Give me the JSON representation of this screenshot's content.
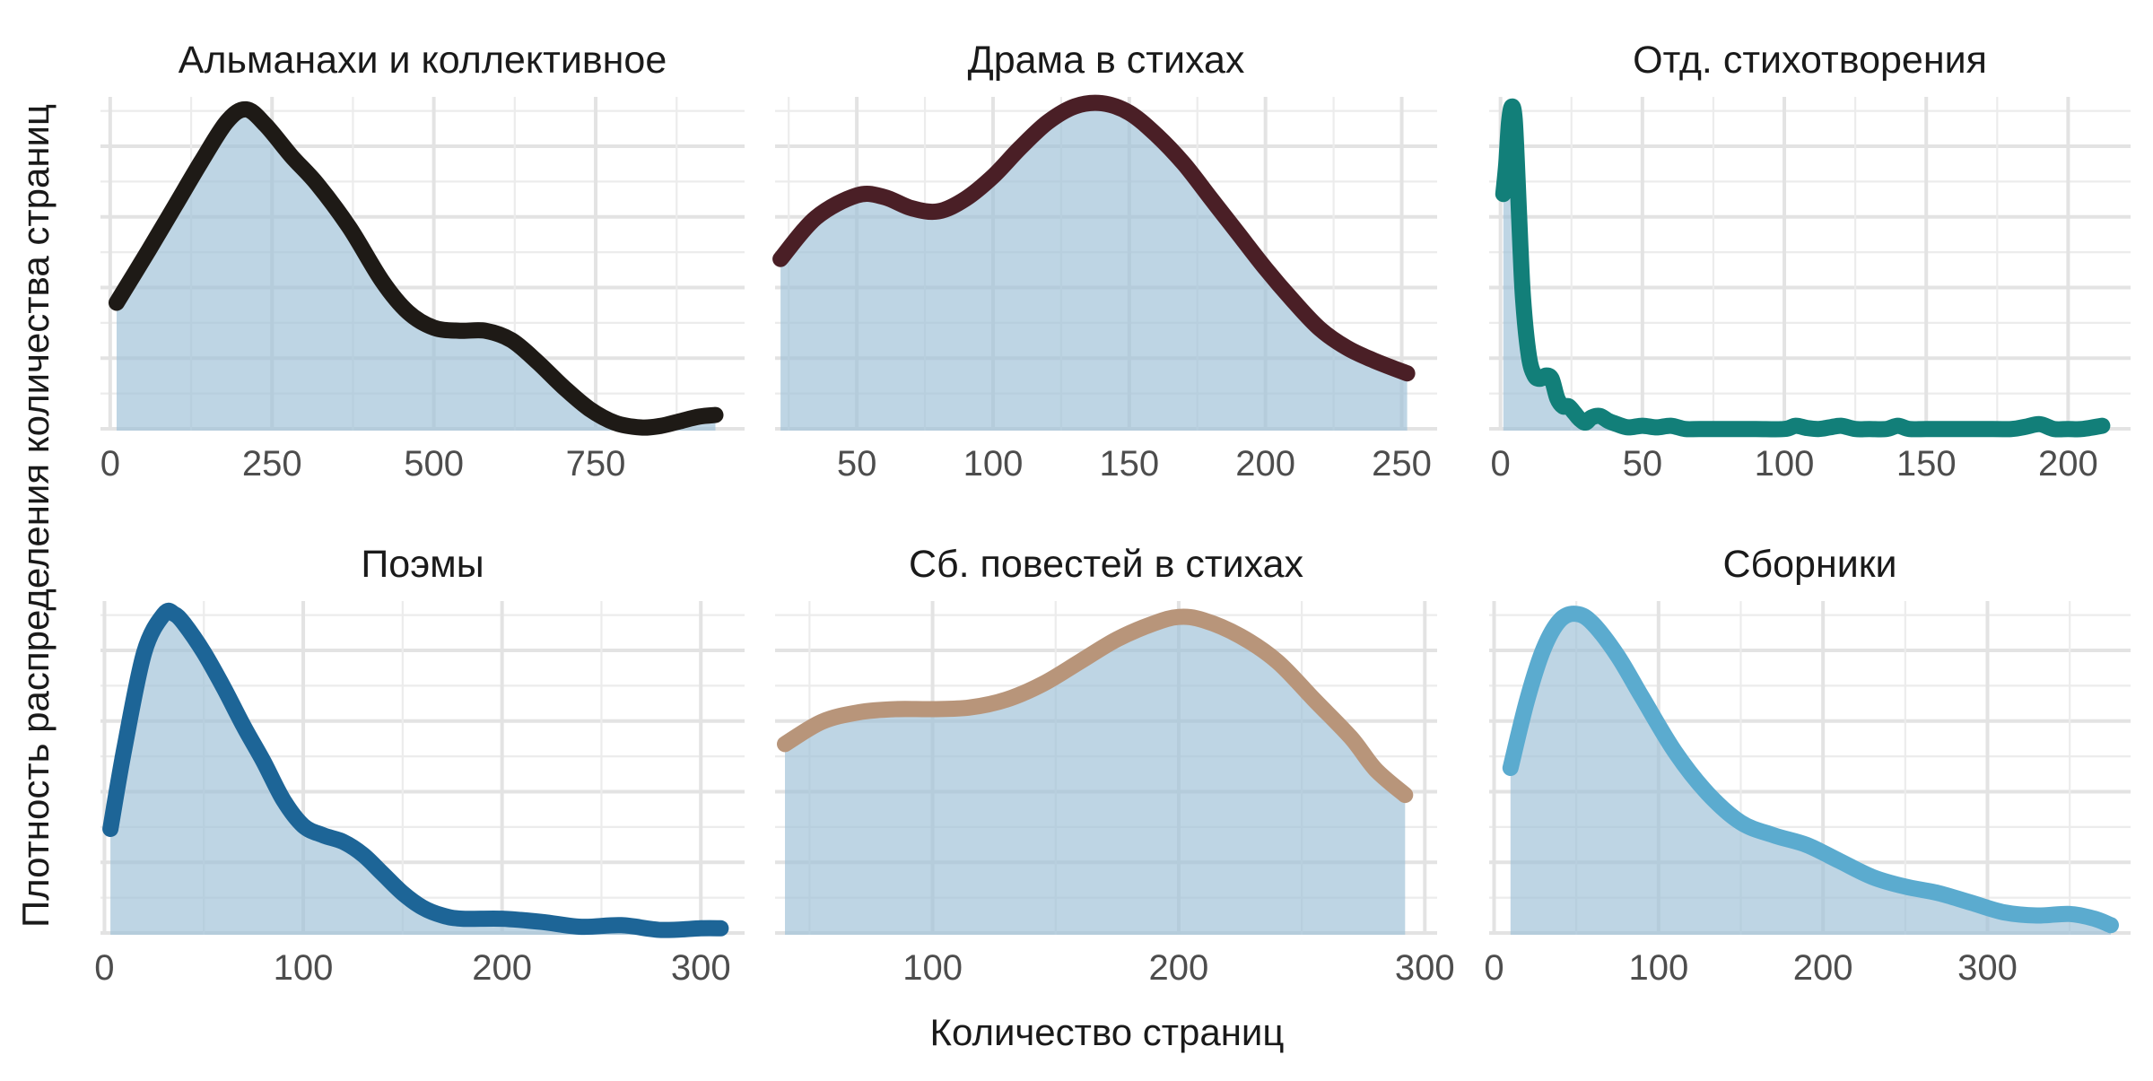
{
  "chart_data": {
    "type": "area",
    "xlabel": "Количество страниц",
    "ylabel": "Плотность распределения количества страниц",
    "fill_color": "#9dc0d6",
    "grid": true,
    "panels": [
      {
        "title": "Альманахи и коллективное",
        "color": "#1e1a16",
        "xlim": [
          -15,
          980
        ],
        "ylim": [
          0,
          1.07
        ],
        "xticks": [
          0,
          250,
          500,
          750
        ],
        "xtick_labels": [
          "0",
          "250",
          "500",
          "750"
        ],
        "x": [
          10,
          60,
          100,
          140,
          180,
          210,
          240,
          280,
          320,
          370,
          420,
          460,
          500,
          540,
          580,
          620,
          660,
          700,
          740,
          780,
          820,
          850,
          880,
          910,
          935
        ],
        "y": [
          0.41,
          0.58,
          0.72,
          0.86,
          0.99,
          1.03,
          0.98,
          0.88,
          0.79,
          0.65,
          0.48,
          0.38,
          0.33,
          0.32,
          0.32,
          0.29,
          0.22,
          0.14,
          0.07,
          0.025,
          0.01,
          0.015,
          0.03,
          0.045,
          0.05
        ]
      },
      {
        "title": "Драма в стихах",
        "color": "#4a1f26",
        "xlim": [
          20,
          263
        ],
        "ylim": [
          0,
          1.05
        ],
        "xticks": [
          50,
          100,
          150,
          200,
          250
        ],
        "xtick_labels": [
          "50",
          "100",
          "150",
          "200",
          "250"
        ],
        "x": [
          22,
          35,
          50,
          60,
          70,
          80,
          90,
          100,
          110,
          120,
          130,
          140,
          150,
          160,
          170,
          180,
          190,
          200,
          210,
          220,
          230,
          240,
          252
        ],
        "y": [
          0.54,
          0.67,
          0.74,
          0.735,
          0.7,
          0.69,
          0.73,
          0.8,
          0.89,
          0.97,
          1.02,
          1.03,
          1.0,
          0.93,
          0.84,
          0.73,
          0.62,
          0.51,
          0.41,
          0.32,
          0.26,
          0.22,
          0.18
        ]
      },
      {
        "title": "Отд. стихотворения",
        "color": "#127f79",
        "xlim": [
          -4,
          222
        ],
        "ylim": [
          0,
          1.03
        ],
        "xticks": [
          0,
          50,
          100,
          150,
          200
        ],
        "xtick_labels": [
          "0",
          "50",
          "100",
          "150",
          "200"
        ],
        "x": [
          1,
          2,
          3,
          4,
          5,
          6,
          7,
          8,
          10,
          12,
          14,
          16,
          18,
          20,
          22,
          24,
          26,
          28,
          30,
          32,
          35,
          38,
          41,
          45,
          50,
          55,
          60,
          65,
          70,
          80,
          90,
          100,
          104,
          108,
          112,
          116,
          120,
          125,
          130,
          136,
          140,
          144,
          150,
          160,
          170,
          180,
          185,
          190,
          195,
          200,
          205,
          212
        ],
        "y": [
          0.73,
          0.82,
          0.95,
          1.0,
          0.96,
          0.78,
          0.57,
          0.4,
          0.23,
          0.17,
          0.16,
          0.17,
          0.16,
          0.1,
          0.075,
          0.075,
          0.055,
          0.035,
          0.025,
          0.04,
          0.045,
          0.03,
          0.02,
          0.01,
          0.015,
          0.01,
          0.015,
          0.005,
          0.005,
          0.005,
          0.005,
          0.005,
          0.015,
          0.008,
          0.005,
          0.01,
          0.015,
          0.005,
          0.005,
          0.005,
          0.015,
          0.005,
          0.005,
          0.005,
          0.005,
          0.005,
          0.012,
          0.02,
          0.005,
          0.005,
          0.005,
          0.015
        ]
      },
      {
        "title": "Поэмы",
        "color": "#1d6597",
        "xlim": [
          -2,
          322
        ],
        "ylim": [
          0,
          1.04
        ],
        "xticks": [
          0,
          100,
          200,
          300
        ],
        "xtick_labels": [
          "0",
          "100",
          "200",
          "300"
        ],
        "x": [
          3,
          10,
          20,
          30,
          35,
          40,
          50,
          60,
          70,
          80,
          90,
          100,
          110,
          120,
          130,
          140,
          150,
          160,
          170,
          180,
          200,
          220,
          240,
          260,
          280,
          300,
          310
        ],
        "y": [
          0.33,
          0.58,
          0.88,
          1.0,
          1.0,
          0.97,
          0.88,
          0.77,
          0.65,
          0.54,
          0.42,
          0.34,
          0.31,
          0.29,
          0.25,
          0.19,
          0.13,
          0.085,
          0.06,
          0.05,
          0.05,
          0.04,
          0.025,
          0.03,
          0.015,
          0.02,
          0.02
        ]
      },
      {
        "title": "Сб. повестей в стихах",
        "color": "#b8957a",
        "xlim": [
          36,
          305
        ],
        "ylim": [
          0,
          1.05
        ],
        "xticks": [
          100,
          200,
          300
        ],
        "xtick_labels": [
          "100",
          "200",
          "300"
        ],
        "x": [
          40,
          55,
          70,
          85,
          100,
          115,
          130,
          145,
          160,
          175,
          190,
          200,
          210,
          225,
          240,
          255,
          270,
          280,
          292
        ],
        "y": [
          0.6,
          0.67,
          0.7,
          0.71,
          0.71,
          0.715,
          0.74,
          0.79,
          0.86,
          0.93,
          0.98,
          1.0,
          0.99,
          0.94,
          0.86,
          0.74,
          0.62,
          0.52,
          0.44
        ]
      },
      {
        "title": "Сборники",
        "color": "#5babcf",
        "xlim": [
          -3,
          387
        ],
        "ylim": [
          0,
          1.04
        ],
        "xticks": [
          0,
          100,
          200,
          300
        ],
        "xtick_labels": [
          "0",
          "100",
          "200",
          "300"
        ],
        "x": [
          10,
          20,
          30,
          40,
          50,
          60,
          75,
          90,
          110,
          130,
          150,
          170,
          190,
          210,
          230,
          250,
          270,
          290,
          310,
          330,
          350,
          365,
          375
        ],
        "y": [
          0.52,
          0.73,
          0.89,
          0.98,
          1.0,
          0.97,
          0.87,
          0.74,
          0.57,
          0.44,
          0.35,
          0.31,
          0.28,
          0.23,
          0.18,
          0.15,
          0.13,
          0.1,
          0.07,
          0.06,
          0.065,
          0.05,
          0.03
        ]
      }
    ]
  }
}
